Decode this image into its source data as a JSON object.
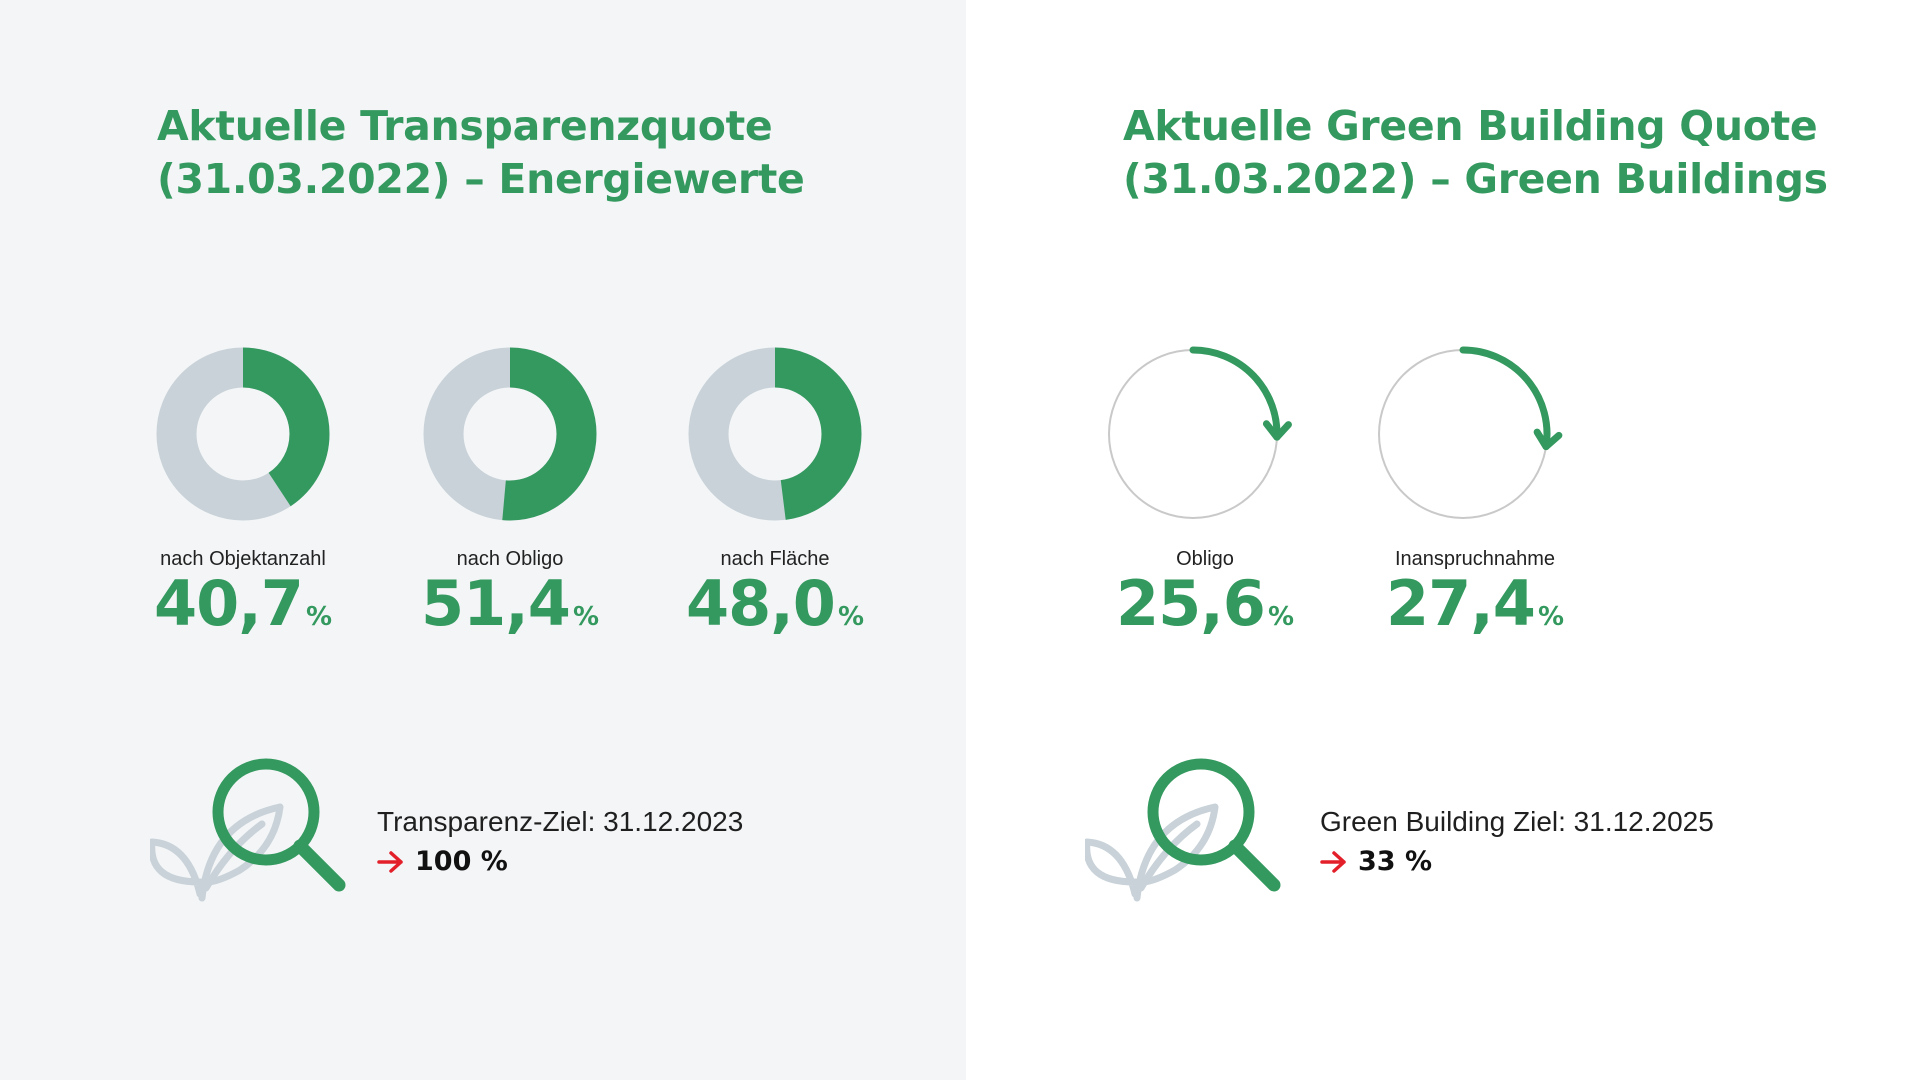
{
  "chart_data": [
    {
      "type": "pie",
      "title_lines": [
        "Aktuelle Transparenzquote",
        "(31.03.2022) – Energiewerte"
      ],
      "unit": "%",
      "items": [
        {
          "label": "nach Objektanzahl",
          "value": 40.7,
          "value_text": "40,7"
        },
        {
          "label": "nach Obligo",
          "value": 51.4,
          "value_text": "51,4"
        },
        {
          "label": "nach Fläche",
          "value": 48.0,
          "value_text": "48,0"
        }
      ],
      "goal": {
        "label": "Transparenz-Ziel: 31.12.2023",
        "value": "100 %"
      },
      "colors": {
        "filled": "#33995e",
        "remainder": "#c8d2d8",
        "accent": "#e3202a"
      }
    },
    {
      "type": "other",
      "title_lines": [
        "Aktuelle Green Building Quote",
        "(31.03.2022) – Green Buildings"
      ],
      "unit": "%",
      "items": [
        {
          "label": "Obligo",
          "value": 25.6,
          "value_text": "25,6"
        },
        {
          "label": "Inanspruchnahme",
          "value": 27.4,
          "value_text": "27,4"
        }
      ],
      "goal": {
        "label": "Green Building Ziel: 31.12.2025",
        "value": "33 %"
      },
      "colors": {
        "arc": "#33995e",
        "ring": "#c9c9c9",
        "accent": "#e3202a"
      }
    }
  ],
  "icons": {
    "goal_icon": "magnifier-leaf-icon",
    "goal_arrow": "arrow-right-icon"
  }
}
